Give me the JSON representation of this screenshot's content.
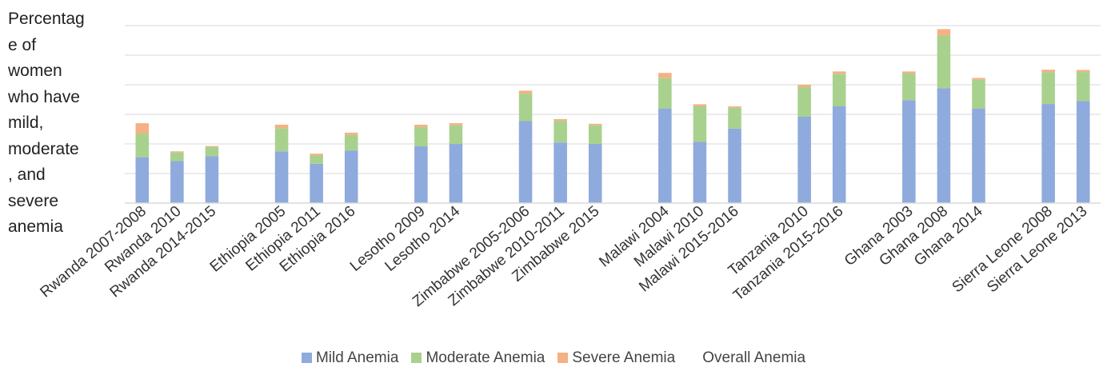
{
  "ylabel_lines": [
    "Percentag",
    "e of",
    "women",
    "who have",
    "mild,",
    "moderate",
    ", and",
    "severe",
    "anemia"
  ],
  "legend": [
    {
      "label": "Mild Anemia",
      "color": "#8faadc"
    },
    {
      "label": "Moderate Anemia",
      "color": "#a9d18e"
    },
    {
      "label": "Severe Anemia",
      "color": "#f4b183"
    },
    {
      "label": "Overall Anemia",
      "color": ""
    }
  ],
  "chart_data": {
    "type": "bar",
    "stacked": true,
    "ylabel": "Percentage of women who have mild, moderate, and severe anemia",
    "ylim": [
      0,
      60
    ],
    "grid": true,
    "legend_position": "bottom",
    "tick_labels_shown": false,
    "categories": [
      "Rwanda 2007-2008",
      "Rwanda 2010",
      "Rwanda 2014-2015",
      "Ethiopia 2005",
      "Ethiopia 2011",
      "Ethiopia 2016",
      "Lesotho 2009",
      "Lesotho 2014",
      "Zimbabwe 2005-2006",
      "Zimbabwe 2010-2011",
      "Zimbabwe 2015",
      "Malawi 2004",
      "Malawi 2010",
      "Malawi 2015-2016",
      "Tanzania 2010",
      "Tanzania 2015-2016",
      "Ghana 2003",
      "Ghana 2008",
      "Ghana 2014",
      "Sierra Leone 2008",
      "Sierra Leone 2013"
    ],
    "groups": [
      3,
      3,
      2,
      3,
      3,
      2,
      3,
      2
    ],
    "series": [
      {
        "name": "Mild Anemia",
        "color": "#8faadc",
        "values": [
          15.5,
          14.2,
          15.8,
          17.5,
          13.3,
          17.8,
          19.2,
          20.0,
          27.7,
          20.5,
          20.0,
          32.0,
          20.7,
          25.2,
          29.2,
          32.7,
          34.8,
          38.8,
          32.0,
          33.5,
          34.5
        ]
      },
      {
        "name": "Moderate Anemia",
        "color": "#a9d18e",
        "values": [
          8.0,
          3.0,
          3.2,
          7.8,
          2.8,
          5.2,
          6.5,
          6.3,
          9.3,
          7.3,
          6.3,
          10.2,
          12.0,
          7.0,
          10.0,
          11.0,
          9.0,
          17.8,
          9.7,
          10.8,
          9.8
        ]
      },
      {
        "name": "Severe Anemia",
        "color": "#f4b183",
        "values": [
          3.5,
          0.3,
          0.3,
          1.2,
          0.6,
          0.8,
          0.8,
          0.7,
          1.0,
          0.6,
          0.5,
          1.8,
          0.7,
          0.5,
          0.8,
          0.8,
          0.7,
          2.2,
          0.6,
          0.8,
          0.7
        ]
      }
    ]
  }
}
